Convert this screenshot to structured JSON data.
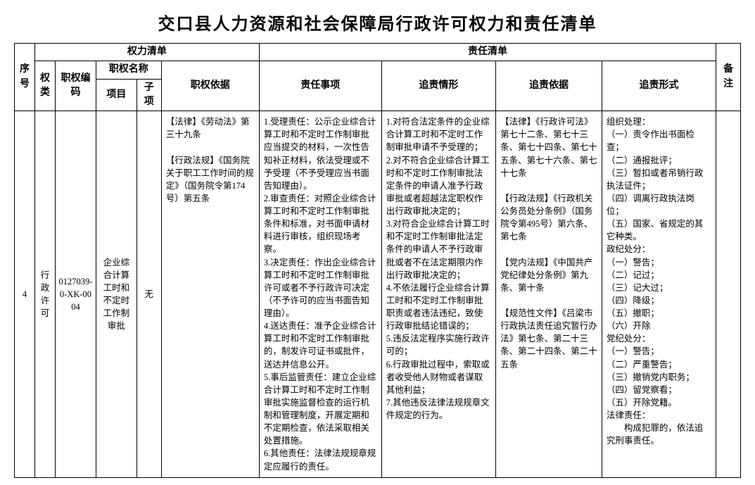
{
  "title": "交口县人力资源和社会保障局行政许可权力和责任清单",
  "headers": {
    "seq": "序号",
    "power_list": "权力清单",
    "duty_list": "责任清单",
    "remark": "备注",
    "power_type": "权类",
    "power_code": "职权编码",
    "power_name": "职权名称",
    "item": "项目",
    "subitem": "子项",
    "basis": "职权依据",
    "duty_matter": "责任事项",
    "accountability_situation": "追责情形",
    "accountability_basis": "追责依据",
    "accountability_form": "追责形式"
  },
  "row": {
    "seq": "4",
    "power_type": "行政许可",
    "power_code": "0127039-0-XK-0004",
    "item": "企业综合计算工时和不定时工作制审批",
    "subitem": "无",
    "basis": "【法律】《劳动法》第三十九条\n\n【行政法规】《国务院关于职工工作时间的规定》（国务院令第174号）第五条",
    "duty_matter": "1.受理责任：公示企业综合计算工时和不定时工作制审批应当提交的材料，一次性告知补正材料，依法受理或不予受理（不予受理应当书面告知理由）。\n2.审查责任：对照企业综合计算工时和不定时工作制审批条件和标准，对书面申请材料进行审核，组织现场考察。\n3.决定责任：作出企业综合计算工时和不定时工作制审批许可或者不予行政许可决定（不予许可的应当书面告知理由）。\n4.送达责任：准予企业综合计算工时和不定时工作制审批的，制发许可证书或批件，送达并信息公开。\n5.事后监管责任：建立企业综合计算工时和不定时工作制审批实施监督检查的运行机制和管理制度，开展定期和不定期检查，依法采取相关处置措施。\n6.其他责任：法律法规规章规定应履行的责任。",
    "accountability_situation": "1.对符合法定条件的企业综合计算工时和不定时工作制审批申请不予受理的；\n2.对不符合企业综合计算工时和不定时工作制审批法定条件的申请人准予行政审批或者超越法定职权作出行政审批决定的；\n3.对符合企业综合计算工时和不定时工作制审批法定条件的申请人不予行政审批或者不在法定期限内作出行政审批决定的；\n4.不依法履行企业综合计算工时和不定时工作制审批职责或者违法违纪，致使行政审批结论错误的；\n5.违反法定程序实施行政许可的；\n6.行政审批过程中，索取或者收受他人财物或者谋取其他利益；\n7.其他违反法律法规规章文件规定的行为。",
    "accountability_basis": "【法律】《行政许可法》第七十二条、第七十三条、第七十四条、第七十五条、第七十六条、第七十七条\n\n【行政法规】《行政机关公务员处分条例》（国务院令第495号）第六条、第七条\n\n【党内法规】《中国共产党纪律处分条例》第九条、第十条\n\n【规范性文件】《吕梁市行政执法责任追究暂行办法》第七条、第二十三条、第二十四条、第二十五条",
    "accountability_form": "组织处理：\n（一）责令作出书面检查；\n（二）通报批评；\n（三）暂扣或者吊销行政执法证件；\n（四）调离行政执法岗位；\n（五）国家、省规定的其它种类。\n政纪处分：\n（一）警告；\n（二）记过；\n（三）记大过；\n（四）降级；\n（五）撤职；\n（六）开除\n党纪处分：\n（一）警告；\n（二）严重警告；\n（三）撤销党内职务；\n（四）留党察看；\n（五）开除党籍。\n法律责任：\n　　构成犯罪的，依法追究刑事责任。",
    "remark": ""
  }
}
